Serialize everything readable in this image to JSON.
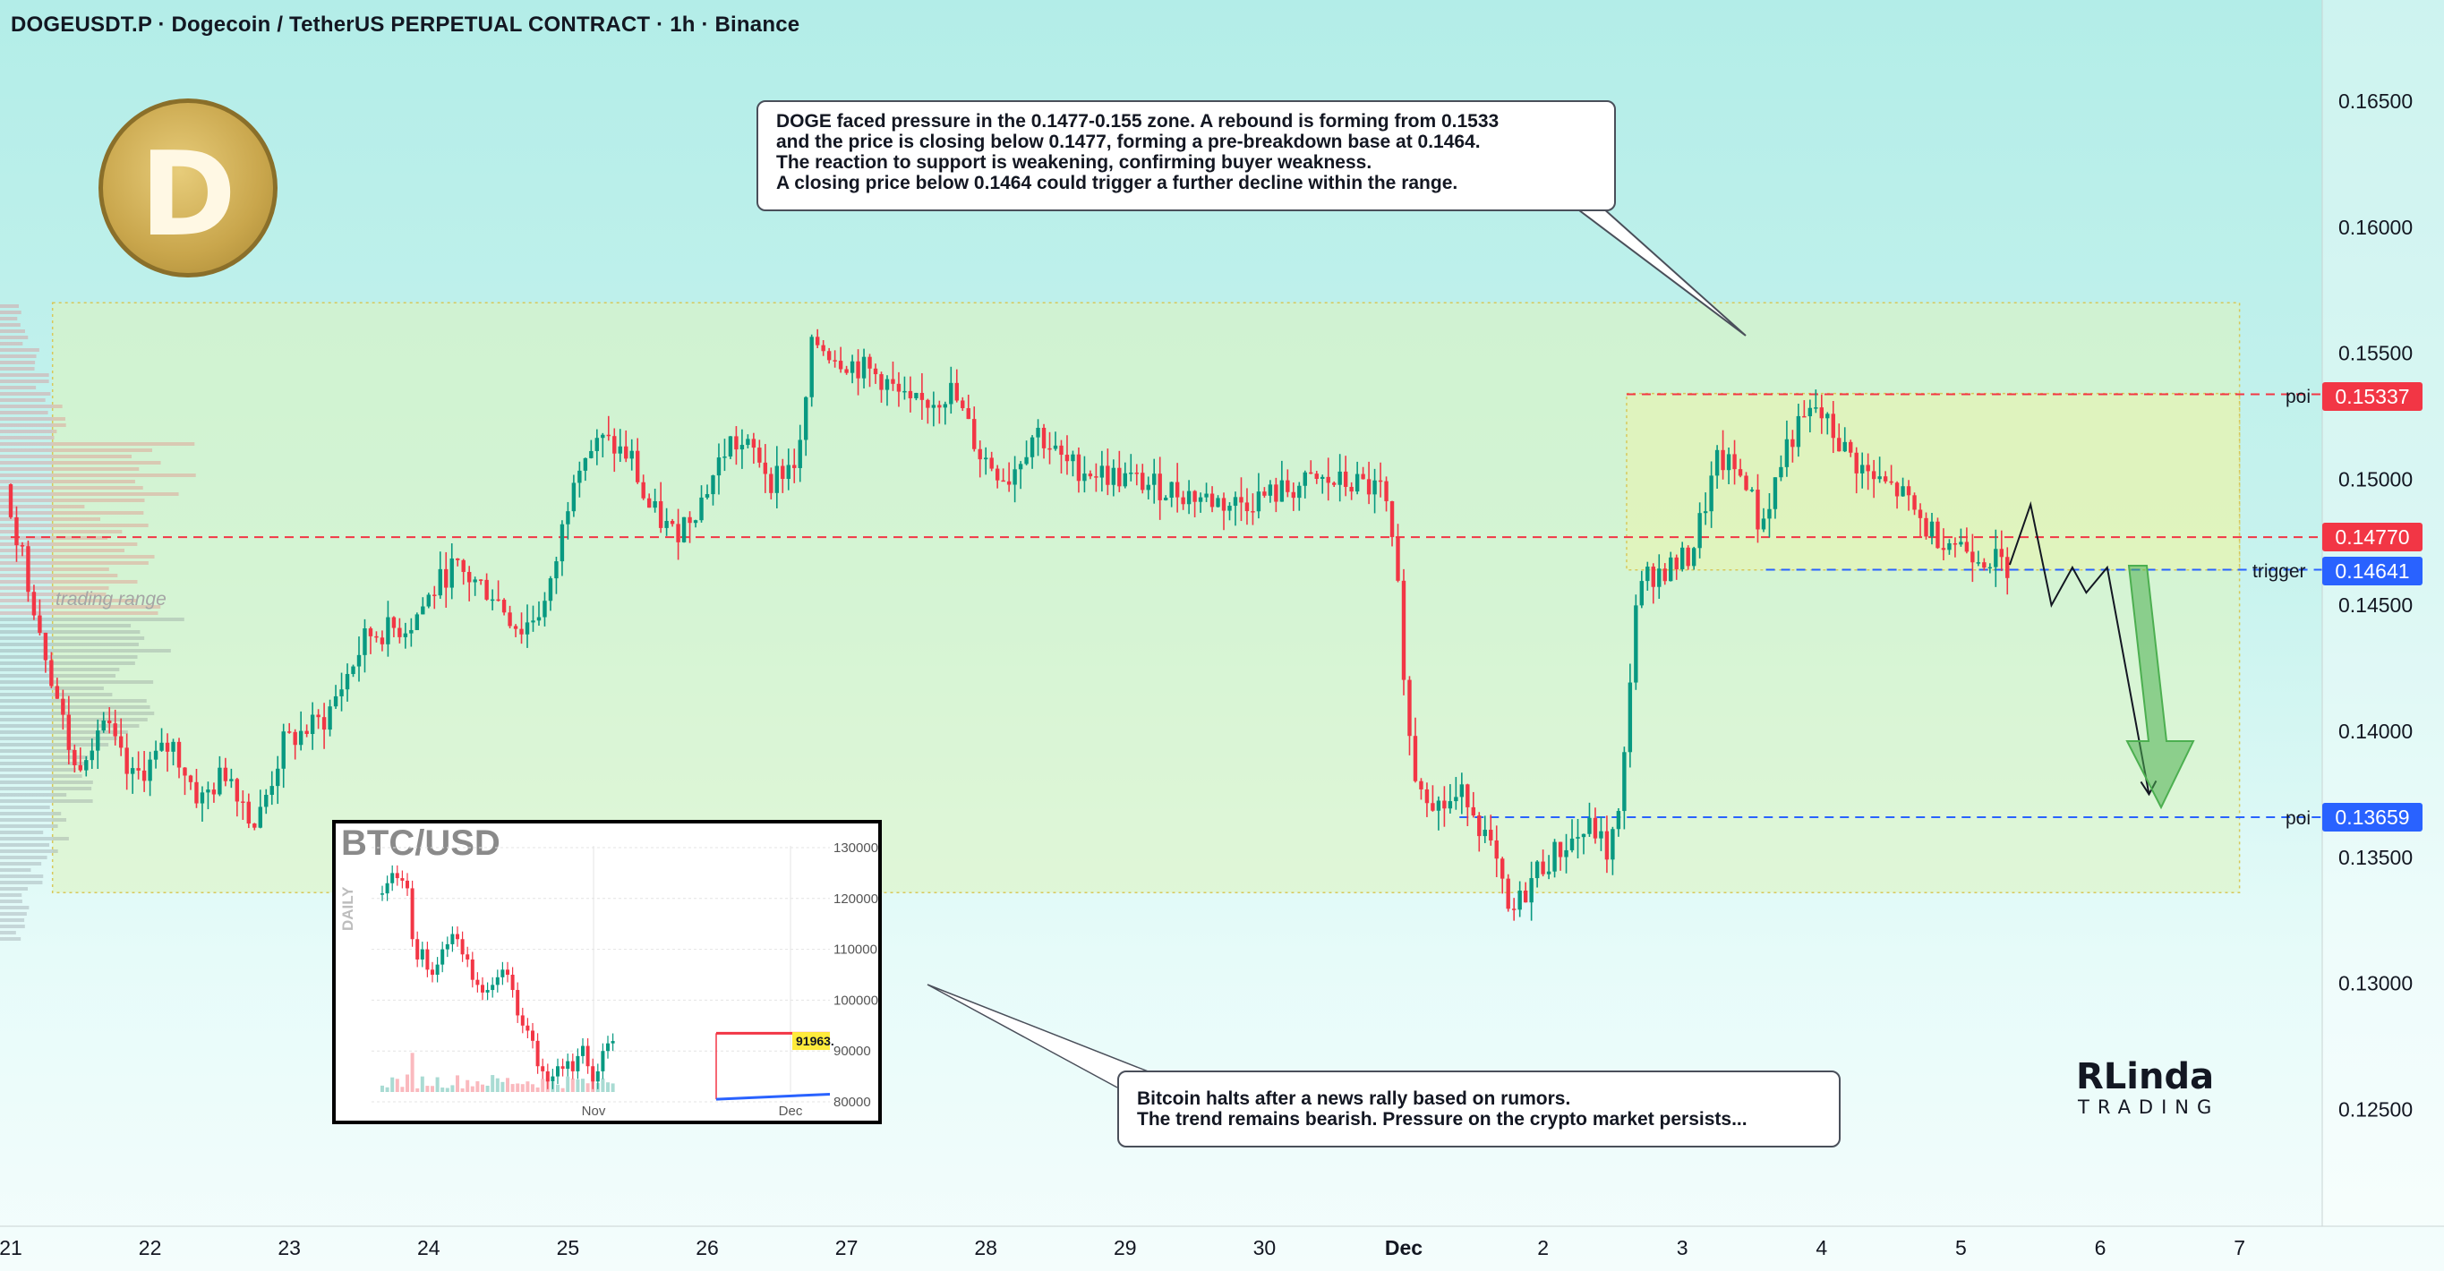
{
  "header": {
    "title": "DOGEUSDT.P · Dogecoin / TetherUS PERPETUAL CONTRACT · 1h · Binance"
  },
  "annotations": {
    "top_callout": [
      "DOGE faced pressure in the 0.1477-0.155 zone. A rebound is forming from 0.1533",
      "and the price is closing below 0.1477, forming a pre-breakdown base at 0.1464.",
      "The reaction to support is weakening, confirming buyer weakness.",
      "A closing price below 0.1464 could trigger a further decline within the range."
    ],
    "bottom_callout": [
      "Bitcoin halts after a news rally based on rumors.",
      "The trend remains bearish. Pressure on the crypto market persists..."
    ],
    "range_label": "trading range"
  },
  "logo": {
    "glyph": "D",
    "icon": "dogecoin-logo-icon"
  },
  "brand": {
    "name": "RLinda",
    "sub": "TRADING"
  },
  "levels": [
    {
      "label": "poi",
      "price": "0.15337",
      "color": "#f23645"
    },
    {
      "label": "",
      "price": "0.14770",
      "color": "#f23645"
    },
    {
      "label": "trigger",
      "price": "0.14641",
      "color": "#2962ff"
    },
    {
      "label": "poi",
      "price": "0.13659",
      "color": "#2962ff"
    }
  ],
  "inset": {
    "title": "BTC/USD",
    "side_label": "DAILY",
    "price_tag": "91963.",
    "y_ticks": [
      "130000",
      "120000",
      "110000",
      "100000",
      "90000",
      "80000"
    ],
    "x_ticks": [
      "Nov",
      "Dec"
    ]
  },
  "colors": {
    "up": "#089981",
    "down": "#f23645",
    "zone": "#e8f7c8",
    "blue": "#2962ff"
  },
  "chart_data": {
    "type": "candlestick",
    "title": "DOGEUSDT.P · Dogecoin / TetherUS PERPETUAL CONTRACT · 1h · Binance",
    "x_ticks": [
      "21",
      "22",
      "23",
      "24",
      "25",
      "26",
      "27",
      "28",
      "29",
      "30",
      "Dec",
      "2",
      "3",
      "4",
      "5",
      "6",
      "7"
    ],
    "y_ticks": [
      "0.16500",
      "0.16000",
      "0.15500",
      "0.15000",
      "0.14500",
      "0.14000",
      "0.13500",
      "0.13000",
      "0.12500"
    ],
    "ylim": [
      0.1215,
      0.1685
    ],
    "close_path": [
      {
        "x": 21.0,
        "y": 0.1498
      },
      {
        "x": 21.3,
        "y": 0.143
      },
      {
        "x": 21.5,
        "y": 0.1385
      },
      {
        "x": 21.7,
        "y": 0.1405
      },
      {
        "x": 21.9,
        "y": 0.138
      },
      {
        "x": 22.2,
        "y": 0.1395
      },
      {
        "x": 22.4,
        "y": 0.1372
      },
      {
        "x": 22.6,
        "y": 0.1385
      },
      {
        "x": 22.8,
        "y": 0.1362
      },
      {
        "x": 23.0,
        "y": 0.1395
      },
      {
        "x": 23.3,
        "y": 0.1405
      },
      {
        "x": 23.6,
        "y": 0.1438
      },
      {
        "x": 23.9,
        "y": 0.1442
      },
      {
        "x": 24.2,
        "y": 0.1465
      },
      {
        "x": 24.5,
        "y": 0.1455
      },
      {
        "x": 24.7,
        "y": 0.144
      },
      {
        "x": 24.9,
        "y": 0.1452
      },
      {
        "x": 25.1,
        "y": 0.1508
      },
      {
        "x": 25.3,
        "y": 0.1515
      },
      {
        "x": 25.5,
        "y": 0.1508
      },
      {
        "x": 25.6,
        "y": 0.149
      },
      {
        "x": 25.8,
        "y": 0.1478
      },
      {
        "x": 26.0,
        "y": 0.1492
      },
      {
        "x": 26.2,
        "y": 0.1515
      },
      {
        "x": 26.4,
        "y": 0.151
      },
      {
        "x": 26.5,
        "y": 0.15
      },
      {
        "x": 26.7,
        "y": 0.1508
      },
      {
        "x": 26.8,
        "y": 0.1555
      },
      {
        "x": 27.0,
        "y": 0.1548
      },
      {
        "x": 27.3,
        "y": 0.154
      },
      {
        "x": 27.5,
        "y": 0.1528
      },
      {
        "x": 27.8,
        "y": 0.1535
      },
      {
        "x": 28.0,
        "y": 0.151
      },
      {
        "x": 28.2,
        "y": 0.15
      },
      {
        "x": 28.4,
        "y": 0.152
      },
      {
        "x": 28.6,
        "y": 0.1506
      },
      {
        "x": 28.9,
        "y": 0.1502
      },
      {
        "x": 29.2,
        "y": 0.1498
      },
      {
        "x": 29.5,
        "y": 0.1494
      },
      {
        "x": 29.8,
        "y": 0.149
      },
      {
        "x": 30.1,
        "y": 0.1494
      },
      {
        "x": 30.4,
        "y": 0.1499
      },
      {
        "x": 30.7,
        "y": 0.1498
      },
      {
        "x": 30.9,
        "y": 0.1495
      },
      {
        "x": 31.0,
        "y": 0.1455
      },
      {
        "x": 31.1,
        "y": 0.1385
      },
      {
        "x": 31.3,
        "y": 0.137
      },
      {
        "x": 31.5,
        "y": 0.1375
      },
      {
        "x": 31.7,
        "y": 0.1348
      },
      {
        "x": 31.8,
        "y": 0.1325
      },
      {
        "x": 32.0,
        "y": 0.1345
      },
      {
        "x": 32.2,
        "y": 0.1355
      },
      {
        "x": 32.4,
        "y": 0.1362
      },
      {
        "x": 32.5,
        "y": 0.1352
      },
      {
        "x": 32.6,
        "y": 0.1368
      },
      {
        "x": 32.7,
        "y": 0.145
      },
      {
        "x": 32.8,
        "y": 0.1462
      },
      {
        "x": 33.0,
        "y": 0.1466
      },
      {
        "x": 33.1,
        "y": 0.147
      },
      {
        "x": 33.3,
        "y": 0.1508
      },
      {
        "x": 33.5,
        "y": 0.15
      },
      {
        "x": 33.6,
        "y": 0.148
      },
      {
        "x": 33.8,
        "y": 0.1515
      },
      {
        "x": 34.0,
        "y": 0.1528
      },
      {
        "x": 34.2,
        "y": 0.1512
      },
      {
        "x": 34.4,
        "y": 0.15
      },
      {
        "x": 34.6,
        "y": 0.1495
      },
      {
        "x": 34.8,
        "y": 0.148
      },
      {
        "x": 35.0,
        "y": 0.1475
      },
      {
        "x": 35.2,
        "y": 0.147
      },
      {
        "x": 35.35,
        "y": 0.1466
      }
    ],
    "projection": [
      {
        "x": 35.35,
        "y": 0.1466
      },
      {
        "x": 35.5,
        "y": 0.149
      },
      {
        "x": 35.65,
        "y": 0.145
      },
      {
        "x": 35.8,
        "y": 0.1465
      },
      {
        "x": 35.9,
        "y": 0.1455
      },
      {
        "x": 36.05,
        "y": 0.1465
      },
      {
        "x": 36.35,
        "y": 0.1375
      }
    ],
    "zones": [
      {
        "name": "trading range",
        "x0": 21.3,
        "x1": 37.0,
        "y0": 0.1336,
        "y1": 0.157
      },
      {
        "name": "pressure zone",
        "x0": 32.6,
        "x1": 37.0,
        "y0": 0.1464,
        "y1": 0.1534
      }
    ],
    "levels": [
      0.15337,
      0.1477,
      0.14641,
      0.13659
    ],
    "grid": false,
    "legend": "none"
  }
}
